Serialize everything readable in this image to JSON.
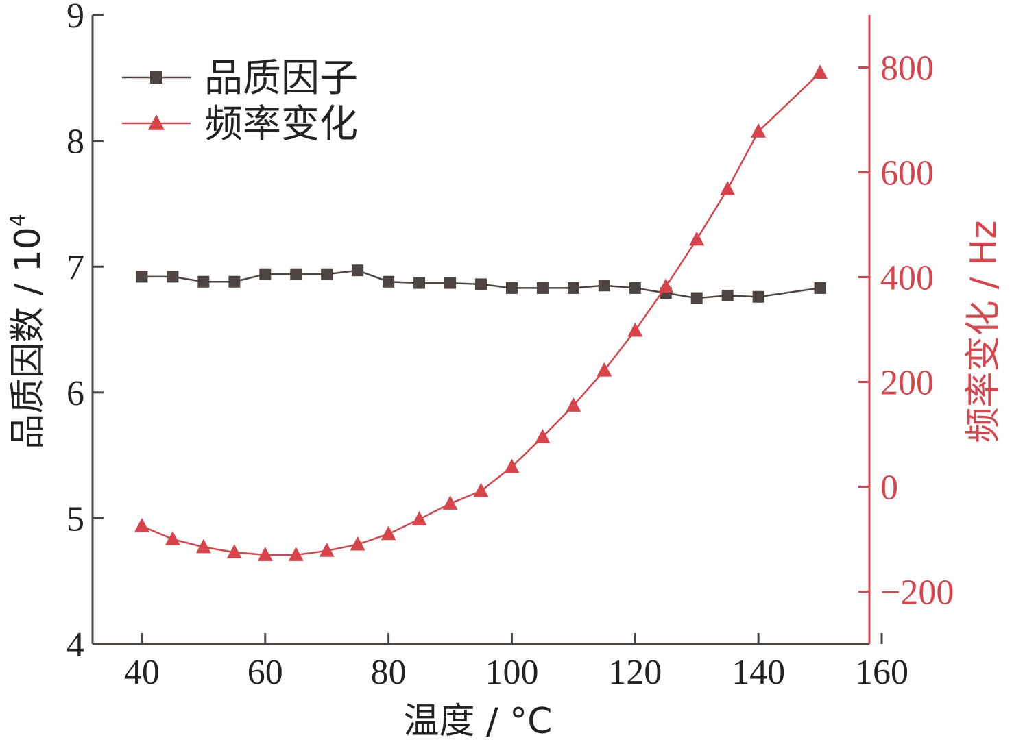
{
  "chart_data": {
    "type": "line",
    "x": [
      40,
      45,
      50,
      55,
      60,
      65,
      70,
      75,
      80,
      85,
      90,
      95,
      100,
      105,
      110,
      115,
      120,
      125,
      130,
      135,
      140,
      150
    ],
    "xlabel": "温度 / °C",
    "xlim": [
      32,
      158
    ],
    "xticks": [
      "40",
      "60",
      "80",
      "100",
      "120",
      "140",
      "160"
    ],
    "y_left": {
      "label": "品质因数 / 10",
      "label_sup": "4",
      "lim": [
        4,
        9
      ],
      "ticks": [
        "4",
        "5",
        "6",
        "7",
        "8",
        "9"
      ],
      "color": "#4d4542"
    },
    "y_right": {
      "label": "频率变化 / Hz",
      "lim": [
        -300,
        900
      ],
      "ticks": [
        "−200",
        "0",
        "200",
        "400",
        "600",
        "800"
      ],
      "color": "#d9434a"
    },
    "legend_position": "top-left",
    "series": [
      {
        "name": "品质因子",
        "axis": "left",
        "marker": "square",
        "color": "#4d4542",
        "values": [
          6.92,
          6.92,
          6.88,
          6.88,
          6.94,
          6.94,
          6.94,
          6.97,
          6.88,
          6.87,
          6.87,
          6.86,
          6.83,
          6.83,
          6.83,
          6.85,
          6.83,
          6.79,
          6.75,
          6.77,
          6.76,
          6.83
        ]
      },
      {
        "name": "频率变化",
        "axis": "right",
        "marker": "triangle",
        "color": "#d9434a",
        "values": [
          -75,
          -100,
          -115,
          -125,
          -130,
          -130,
          -122,
          -110,
          -90,
          -62,
          -32,
          -8,
          38,
          95,
          155,
          222,
          298,
          382,
          472,
          568,
          678,
          790
        ]
      }
    ]
  }
}
